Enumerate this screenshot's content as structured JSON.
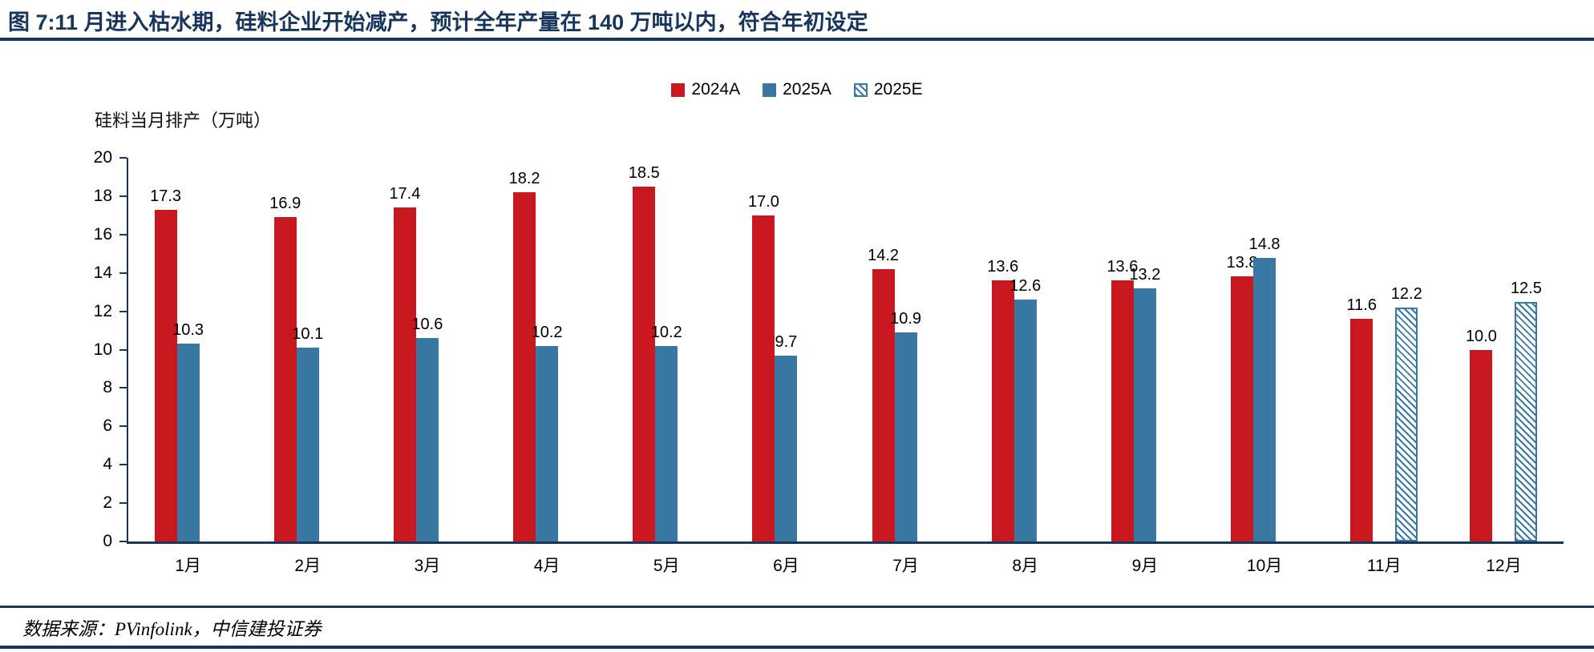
{
  "title": "图 7:11 月进入枯水期，硅料企业开始减产，预计全年产量在 140 万吨以内，符合年初设定",
  "source": "数据来源：PVinfolink，中信建投证券",
  "colors": {
    "accent_navy": "#17365D",
    "series_red": "#C8171E",
    "series_blue": "#3878A3",
    "text": "#000000",
    "background": "#FFFFFF"
  },
  "chart_data": {
    "type": "bar",
    "title": "",
    "axis_title": "硅料当月排产（万吨）",
    "xlabel": "",
    "ylabel": "硅料当月排产（万吨）",
    "categories": [
      "1月",
      "2月",
      "3月",
      "4月",
      "5月",
      "6月",
      "7月",
      "8月",
      "9月",
      "10月",
      "11月",
      "12月"
    ],
    "series": [
      {
        "name": "2024A",
        "style": "solid",
        "color": "#C8171E",
        "values": [
          17.3,
          16.9,
          17.4,
          18.2,
          18.5,
          17.0,
          14.2,
          13.6,
          13.6,
          13.8,
          11.6,
          10.0
        ]
      },
      {
        "name": "2025A",
        "style": "solid",
        "color": "#3878A3",
        "values": [
          10.3,
          10.1,
          10.6,
          10.2,
          10.2,
          9.7,
          10.9,
          12.6,
          13.2,
          14.8,
          null,
          null
        ]
      },
      {
        "name": "2025E",
        "style": "hatched",
        "color": "#3878A3",
        "values": [
          null,
          null,
          null,
          null,
          null,
          null,
          null,
          null,
          null,
          null,
          12.2,
          12.5
        ]
      }
    ],
    "ylim": [
      0,
      20
    ],
    "ytick_step": 2,
    "grid": false,
    "legend_position": "top-center",
    "value_labels": true
  }
}
